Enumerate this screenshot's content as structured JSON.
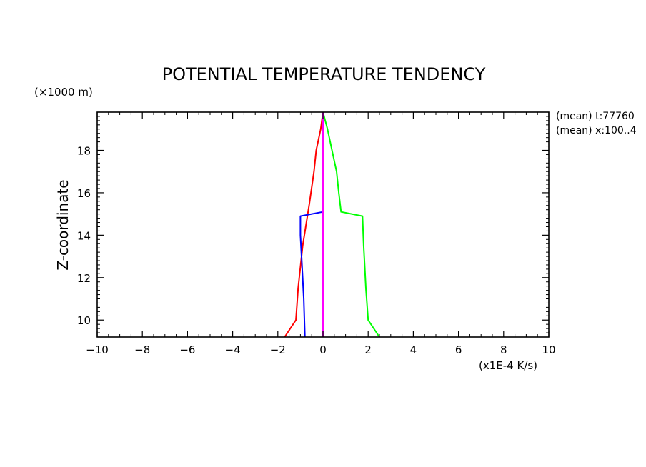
{
  "chart_data": {
    "type": "line",
    "title": "POTENTIAL TEMPERATURE TENDENCY",
    "ylabel": "Z-coordinate",
    "yunit": "(×1000 m)",
    "xunit": "(x1E-4 K/s)",
    "annotations": [
      "(mean) t:77760",
      "(mean) x:100..4"
    ],
    "xlim": [
      -10,
      10
    ],
    "ylim": [
      9.2,
      19.8
    ],
    "xticks": [
      -10,
      -8,
      -6,
      -4,
      -2,
      0,
      2,
      4,
      6,
      8,
      10
    ],
    "xtick_labels": [
      "−10",
      "−8",
      "−6",
      "−4",
      "−2",
      "0",
      "2",
      "4",
      "6",
      "8",
      "10"
    ],
    "yticks": [
      10,
      12,
      14,
      16,
      18
    ],
    "ytick_labels": [
      "10",
      "12",
      "14",
      "16",
      "18"
    ],
    "grid": false,
    "series": [
      {
        "color": "#ff0000",
        "x": [
          -1.7,
          -1.2,
          -1.1,
          -0.9,
          -0.6,
          -0.4,
          -0.3,
          -0.1,
          0
        ],
        "y": [
          9.2,
          10.0,
          11.5,
          13.5,
          15.5,
          17.0,
          18.0,
          19.0,
          19.8
        ]
      },
      {
        "color": "#00ff00",
        "x": [
          2.5,
          2.0,
          1.9,
          1.8,
          1.75,
          0.8,
          0.7,
          0.6,
          0.4,
          0.2,
          0
        ],
        "y": [
          9.2,
          10.0,
          11.5,
          13.5,
          14.9,
          15.1,
          16.0,
          17.0,
          18.0,
          19.0,
          19.8
        ]
      },
      {
        "color": "#0000ff",
        "x": [
          -0.8,
          -0.85,
          -0.95,
          -1.0,
          -1.0,
          0,
          0,
          0,
          0,
          0
        ],
        "y": [
          9.2,
          11.0,
          13.0,
          14.0,
          14.9,
          15.1,
          15.7,
          16.3,
          17.0,
          18.0
        ]
      },
      {
        "color": "#ff00ff",
        "x": [
          0,
          0
        ],
        "y": [
          9.2,
          19.8
        ]
      }
    ]
  }
}
